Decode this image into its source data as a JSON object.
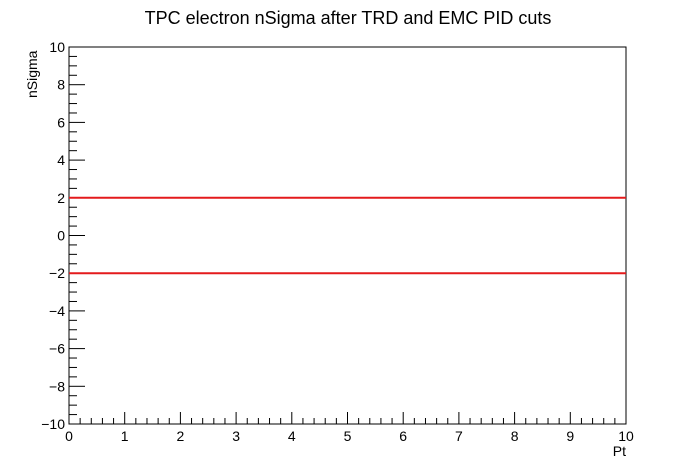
{
  "chart_data": {
    "type": "line",
    "title": "TPC electron nSigma after TRD and EMC PID cuts",
    "xlabel": "Pt",
    "ylabel": "nSigma",
    "xlim": [
      0,
      10
    ],
    "ylim": [
      -10,
      10
    ],
    "x_ticks": [
      "0",
      "1",
      "2",
      "3",
      "4",
      "5",
      "6",
      "7",
      "8",
      "9",
      "10"
    ],
    "y_ticks": [
      "−10",
      "−8",
      "−6",
      "−4",
      "−2",
      "0",
      "2",
      "4",
      "6",
      "8",
      "10"
    ],
    "grid": false,
    "legend": "none",
    "series": [
      {
        "x": [
          0,
          10
        ],
        "y": [
          2,
          2
        ],
        "color": "#e41a1c"
      },
      {
        "x": [
          0,
          10
        ],
        "y": [
          -2,
          -2
        ],
        "color": "#e41a1c"
      }
    ]
  }
}
